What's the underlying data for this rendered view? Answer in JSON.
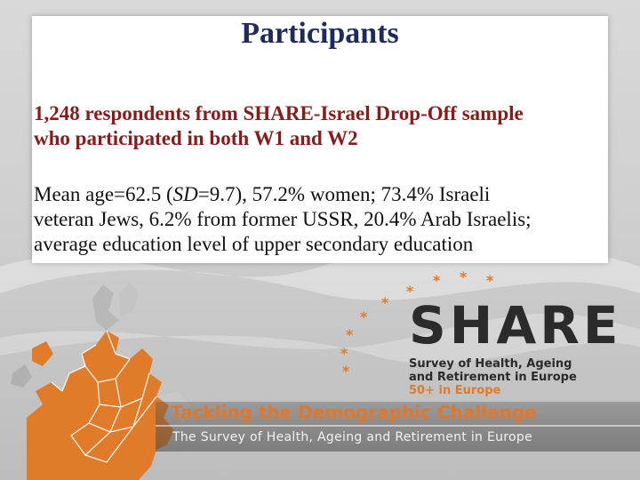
{
  "slide": {
    "title": "Participants",
    "lead_lines": [
      "1,248 respondents from SHARE-Israel Drop-Off sample",
      "who participated in both W1 and W2"
    ],
    "body": {
      "line1_before": "Mean age=62.5 (",
      "line1_sd_label": "SD",
      "line1_after": "=9.7), 57.2% women; 73.4% Israeli",
      "line2": "veteran Jews, 6.2% from former USSR, 20.4% Arab Israelis;",
      "line3": "average education level of upper secondary education"
    }
  },
  "branding": {
    "logo": "SHARE",
    "tagline_lines": [
      "Survey of Health, Ageing",
      "and Retirement in Europe"
    ],
    "age_line": "50+ in Europe",
    "challenge": "Tackling the Demographic Challenge",
    "subtitle": "The Survey of Health, Ageing and Retirement in Europe",
    "icon": "star-ring-icon",
    "map_icon": "europe-map-icon"
  },
  "colors": {
    "title": "#1f2a5c",
    "lead": "#8b1a1a",
    "accent_orange": "#e07b2a",
    "logo": "#2b2b2b"
  }
}
